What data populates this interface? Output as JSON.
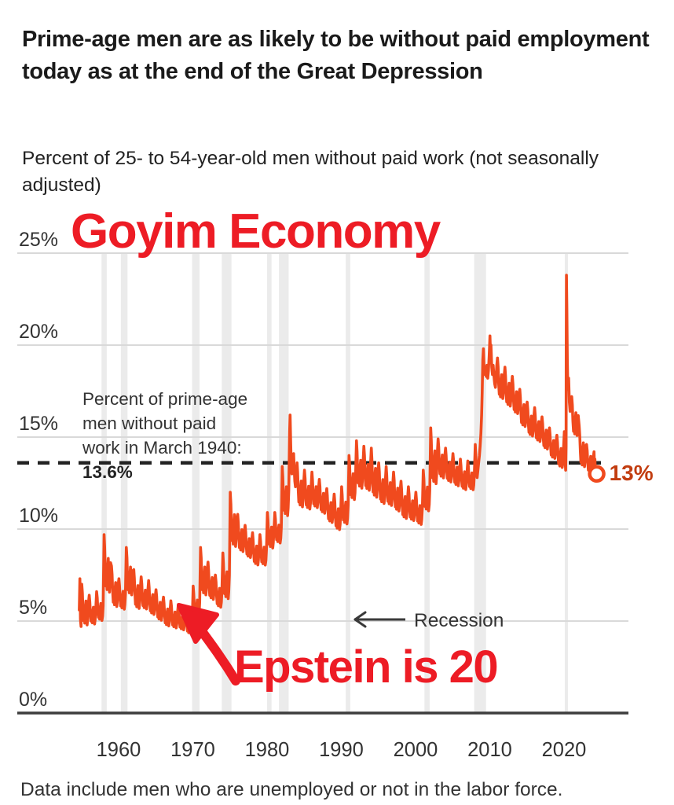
{
  "header": {
    "title": "Prime-age men are as likely to be without paid employment today as at the end of the Great Depression",
    "subtitle": "Percent of 25- to 54-year-old men without paid work (not seasonally adjusted)"
  },
  "graffiti": {
    "top_text": "Goyim Economy",
    "bottom_text": "Epstein is 20",
    "color": "#ed1c25"
  },
  "annotations": {
    "reference_line_label_lines": [
      "Percent of prime-age",
      "men without paid",
      "work in March 1940:",
      "13.6%"
    ],
    "reference_value": 13.6,
    "recession_label": "Recession",
    "end_label": "13%",
    "end_label_color": "#c23d10"
  },
  "footer": {
    "note": "Data include men who are unemployed or not in the labor force."
  },
  "chart_data": {
    "type": "line",
    "title": "Percent of 25- to 54-year-old men without paid work (not seasonally adjusted)",
    "xlabel": "",
    "ylabel": "",
    "grid": true,
    "legend_position": "none",
    "line_color": "#f04a1e",
    "gridline_color": "#d9d9d9",
    "recession_band_color": "#ebebeb",
    "axis_color": "#3d3d3d",
    "xlim": [
      1954.5,
      2025.8
    ],
    "ylim": [
      0,
      25
    ],
    "x_ticks": [
      1960,
      1970,
      1980,
      1990,
      2000,
      2010,
      2020
    ],
    "y_ticks": [
      {
        "value": 0,
        "label": "0%"
      },
      {
        "value": 5,
        "label": "5%"
      },
      {
        "value": 10,
        "label": "10%"
      },
      {
        "value": 15,
        "label": "15%"
      },
      {
        "value": 20,
        "label": "20%"
      },
      {
        "value": 25,
        "label": "25%"
      }
    ],
    "reference_line": {
      "value": 13.6,
      "style": "dashed",
      "color": "#222222"
    },
    "recessions": [
      [
        1957.7,
        1958.4
      ],
      [
        1960.3,
        1961.2
      ],
      [
        1969.9,
        1970.9
      ],
      [
        1973.9,
        1975.2
      ],
      [
        1980.0,
        1980.6
      ],
      [
        1981.6,
        1982.9
      ],
      [
        1990.6,
        1991.2
      ],
      [
        2001.2,
        2001.9
      ],
      [
        2007.9,
        2009.5
      ],
      [
        2020.1,
        2020.4
      ]
    ],
    "series": {
      "name": "Percent of 25- to 54-year-old men without paid work",
      "unit": "%",
      "annual_low_high": [
        [
          1955,
          4.6,
          7.0
        ],
        [
          1956,
          4.7,
          6.4
        ],
        [
          1957,
          4.9,
          6.6
        ],
        [
          1958,
          6.3,
          9.7
        ],
        [
          1959,
          5.6,
          8.0
        ],
        [
          1960,
          5.5,
          7.3
        ],
        [
          1961,
          6.2,
          9.0
        ],
        [
          1962,
          5.5,
          7.8
        ],
        [
          1963,
          5.5,
          7.4
        ],
        [
          1964,
          5.2,
          7.2
        ],
        [
          1965,
          4.9,
          6.7
        ],
        [
          1966,
          4.6,
          6.3
        ],
        [
          1967,
          4.5,
          6.1
        ],
        [
          1968,
          4.4,
          5.9
        ],
        [
          1969,
          4.2,
          5.6
        ],
        [
          1970,
          4.9,
          6.9
        ],
        [
          1971,
          6.2,
          9.0
        ],
        [
          1972,
          6.0,
          8.2
        ],
        [
          1973,
          5.6,
          7.5
        ],
        [
          1974,
          6.0,
          8.7
        ],
        [
          1975,
          8.8,
          12.0
        ],
        [
          1976,
          8.6,
          10.8
        ],
        [
          1977,
          8.3,
          10.2
        ],
        [
          1978,
          7.9,
          9.8
        ],
        [
          1979,
          7.9,
          9.7
        ],
        [
          1980,
          8.8,
          10.9
        ],
        [
          1981,
          9.1,
          10.9
        ],
        [
          1982,
          10.5,
          13.4
        ],
        [
          1984,
          11.0,
          13.6
        ],
        [
          1985,
          10.9,
          13.2
        ],
        [
          1986,
          11.0,
          13.1
        ],
        [
          1987,
          10.7,
          12.7
        ],
        [
          1988,
          10.2,
          12.2
        ],
        [
          1989,
          9.8,
          11.9
        ],
        [
          1990,
          10.1,
          12.3
        ],
        [
          1991,
          11.4,
          14.0
        ],
        [
          1992,
          12.0,
          14.8
        ],
        [
          1993,
          11.9,
          14.5
        ],
        [
          1994,
          11.5,
          14.4
        ],
        [
          1995,
          11.2,
          13.6
        ],
        [
          1996,
          11.1,
          13.4
        ],
        [
          1997,
          10.8,
          13.1
        ],
        [
          1998,
          10.4,
          12.6
        ],
        [
          1999,
          10.3,
          12.3
        ],
        [
          2000,
          10.1,
          12.0
        ],
        [
          2001,
          10.8,
          13.2
        ],
        [
          2002,
          12.2,
          15.5
        ],
        [
          2003,
          12.6,
          14.9
        ],
        [
          2004,
          12.4,
          14.4
        ],
        [
          2005,
          12.2,
          14.1
        ],
        [
          2006,
          12.0,
          13.8
        ],
        [
          2007,
          12.0,
          13.7
        ],
        [
          2011,
          16.9,
          19.3
        ],
        [
          2012,
          16.5,
          18.8
        ],
        [
          2013,
          16.1,
          18.3
        ],
        [
          2014,
          15.4,
          17.6
        ],
        [
          2015,
          14.9,
          16.9
        ],
        [
          2016,
          14.6,
          16.6
        ],
        [
          2017,
          14.2,
          16.1
        ],
        [
          2018,
          13.7,
          15.5
        ],
        [
          2019,
          13.2,
          15.1
        ],
        [
          2021,
          14.9,
          17.2
        ],
        [
          2022,
          13.2,
          15.6
        ],
        [
          2023,
          12.9,
          14.6
        ]
      ],
      "monthly_pattern_overrides": {
        "1954": [
          [
            0.7,
            5.6
          ],
          [
            0.78,
            7.3
          ],
          [
            0.86,
            5.1
          ],
          [
            0.94,
            4.7
          ]
        ],
        "1983": [
          [
            0.04,
            15.3
          ],
          [
            0.1,
            16.2
          ],
          [
            0.18,
            14.6
          ],
          [
            0.26,
            13.4
          ],
          [
            0.34,
            13.0
          ],
          [
            0.42,
            13.5
          ],
          [
            0.5,
            13.8
          ],
          [
            0.58,
            14.1
          ],
          [
            0.66,
            13.2
          ],
          [
            0.74,
            12.6
          ],
          [
            0.82,
            12.3
          ],
          [
            0.92,
            12.9
          ]
        ],
        "2008": [
          [
            0.04,
            14.6
          ],
          [
            0.12,
            14.0
          ],
          [
            0.2,
            13.3
          ],
          [
            0.3,
            12.8
          ],
          [
            0.4,
            13.2
          ],
          [
            0.5,
            13.6
          ],
          [
            0.6,
            14.0
          ],
          [
            0.7,
            14.5
          ],
          [
            0.8,
            15.2
          ],
          [
            0.9,
            16.2
          ],
          [
            0.97,
            17.4
          ]
        ],
        "2009": [
          [
            0.06,
            19.2
          ],
          [
            0.14,
            19.8
          ],
          [
            0.22,
            18.9
          ],
          [
            0.32,
            18.4
          ],
          [
            0.42,
            18.8
          ],
          [
            0.52,
            18.3
          ],
          [
            0.62,
            18.9
          ],
          [
            0.72,
            18.2
          ],
          [
            0.82,
            18.6
          ],
          [
            0.92,
            19.4
          ]
        ],
        "2010": [
          [
            0.02,
            20.5
          ],
          [
            0.08,
            19.7
          ],
          [
            0.16,
            20.0
          ],
          [
            0.26,
            18.8
          ],
          [
            0.36,
            18.4
          ],
          [
            0.46,
            18.9
          ],
          [
            0.56,
            18.3
          ],
          [
            0.66,
            17.9
          ],
          [
            0.76,
            17.7
          ],
          [
            0.86,
            18.3
          ],
          [
            0.94,
            18.9
          ]
        ],
        "2020": [
          [
            0.04,
            15.3
          ],
          [
            0.1,
            14.4
          ],
          [
            0.16,
            13.6
          ],
          [
            0.22,
            13.2
          ],
          [
            0.27,
            14.5
          ],
          [
            0.3,
            20.0
          ],
          [
            0.33,
            23.8
          ],
          [
            0.38,
            22.0
          ],
          [
            0.44,
            19.2
          ],
          [
            0.52,
            17.6
          ],
          [
            0.62,
            18.2
          ],
          [
            0.72,
            16.9
          ],
          [
            0.82,
            16.4
          ],
          [
            0.92,
            17.0
          ]
        ],
        "2024": [
          [
            0.04,
            14.2
          ],
          [
            0.1,
            13.5
          ],
          [
            0.16,
            13.8
          ],
          [
            0.24,
            13.0
          ],
          [
            0.32,
            12.9
          ],
          [
            0.4,
            13.0
          ]
        ]
      },
      "end_point": {
        "year": 2024.4,
        "value": 13.0
      }
    }
  }
}
